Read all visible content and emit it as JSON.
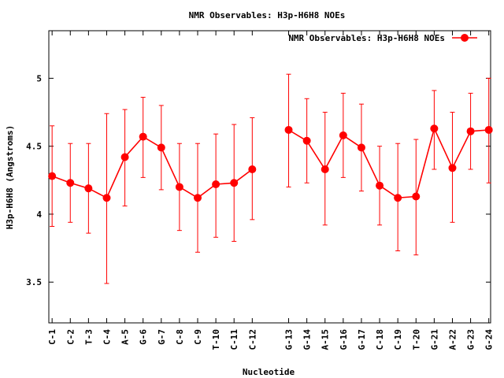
{
  "chart_data": {
    "type": "line",
    "title": "NMR Observables: H3p-H6H8 NOEs",
    "xlabel": "Nucleotide",
    "ylabel": "H3p-H6H8 (Angstroms)",
    "ylim": [
      3.2,
      5.35
    ],
    "yticks": [
      "3.5",
      "4",
      "4.5",
      "5"
    ],
    "ytick_values": [
      3.5,
      4.0,
      4.5,
      5.0
    ],
    "grid": false,
    "legend_position": "top-right",
    "series": [
      {
        "name": "NMR Observables: H3p-H6H8 NOEs",
        "color": "#ff0000",
        "segments": [
          {
            "categories": [
              "C-1",
              "C-2",
              "T-3",
              "C-4",
              "A-5",
              "G-6",
              "G-7",
              "C-8",
              "C-9",
              "T-10",
              "C-11",
              "C-12"
            ],
            "x": [
              1,
              2,
              3,
              4,
              5,
              6,
              7,
              8,
              9,
              10,
              11,
              12
            ],
            "values": [
              4.28,
              4.23,
              4.19,
              4.12,
              4.42,
              4.57,
              4.49,
              4.2,
              4.12,
              4.22,
              4.23,
              4.33
            ],
            "err_low": [
              3.91,
              3.94,
              3.86,
              3.49,
              4.06,
              4.27,
              4.18,
              3.88,
              3.72,
              3.83,
              3.8,
              3.96
            ],
            "err_high": [
              4.65,
              4.52,
              4.52,
              4.74,
              4.77,
              4.86,
              4.8,
              4.52,
              4.52,
              4.59,
              4.66,
              4.71
            ]
          },
          {
            "categories": [
              "G-13",
              "G-14",
              "A-15",
              "G-16",
              "G-17",
              "C-18",
              "C-19",
              "T-20",
              "G-21",
              "A-22",
              "G-23",
              "G-24"
            ],
            "x": [
              14,
              15,
              16,
              17,
              18,
              19,
              20,
              21,
              22,
              23,
              24,
              25
            ],
            "values": [
              4.62,
              4.54,
              4.33,
              4.58,
              4.49,
              4.21,
              4.12,
              4.13,
              4.63,
              4.34,
              4.61,
              4.62
            ],
            "err_low": [
              4.2,
              4.23,
              3.92,
              4.27,
              4.17,
              3.92,
              3.73,
              3.7,
              4.33,
              3.94,
              4.33,
              4.23
            ],
            "err_high": [
              5.03,
              4.85,
              4.75,
              4.89,
              4.81,
              4.5,
              4.52,
              4.55,
              4.91,
              4.75,
              4.89,
              5.0
            ]
          }
        ]
      }
    ]
  }
}
